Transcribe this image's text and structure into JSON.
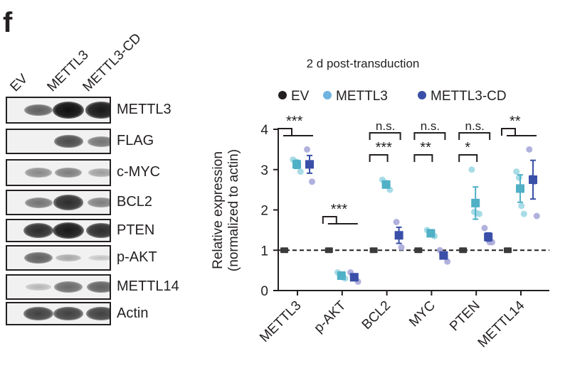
{
  "panel_letter": "f",
  "western_blot": {
    "lanes": [
      "EV",
      "METTL3",
      "METTL3-CD"
    ],
    "rows": [
      {
        "label": "METTL3",
        "intensity": [
          0.6,
          1.0,
          0.95
        ]
      },
      {
        "label": "FLAG",
        "intensity": [
          0.0,
          0.7,
          0.5
        ]
      },
      {
        "label": "c-MYC",
        "intensity": [
          0.4,
          0.45,
          0.3
        ]
      },
      {
        "label": "BCL2",
        "intensity": [
          0.5,
          0.85,
          0.45
        ]
      },
      {
        "label": "PTEN",
        "intensity": [
          0.85,
          0.95,
          0.85
        ]
      },
      {
        "label": "p-AKT",
        "intensity": [
          0.6,
          0.25,
          0.12
        ]
      },
      {
        "label": "METTL14",
        "intensity": [
          0.18,
          0.55,
          0.6
        ]
      },
      {
        "label": "Actin",
        "intensity": [
          0.75,
          0.75,
          0.75
        ]
      }
    ]
  },
  "chart_data": {
    "type": "scatter",
    "title": "2 d post-transduction",
    "xlabel": "",
    "ylabel": "Relative expression\n(normalized to actin)",
    "ylabel_line1": "Relative expression",
    "ylabel_line2": "(normalized to actin)",
    "ylim": [
      0,
      4
    ],
    "yticks": [
      0,
      1,
      2,
      3,
      4
    ],
    "categories": [
      "METTL3",
      "p-AKT",
      "BCL2",
      "MYC",
      "PTEN",
      "METTL14"
    ],
    "reference_line": 1,
    "legend": {
      "placement": "top",
      "entries": [
        {
          "name": "EV",
          "color": "#231f20"
        },
        {
          "name": "METTL3",
          "color": "#6fb3e0"
        },
        {
          "name": "METTL3-CD",
          "color": "#3a4fa8"
        }
      ]
    },
    "series": [
      {
        "name": "EV",
        "color": "#3a3a3a",
        "mean": [
          1,
          1,
          1,
          1,
          1,
          1
        ],
        "sem": [
          0,
          0,
          0,
          0,
          0,
          0
        ],
        "points": [
          [
            1,
            1,
            1
          ],
          [
            1,
            1,
            1
          ],
          [
            1,
            1,
            1
          ],
          [
            1,
            1,
            1
          ],
          [
            1,
            1,
            1
          ],
          [
            1,
            1,
            1
          ]
        ]
      },
      {
        "name": "METTL3",
        "color": "#4fb0c6",
        "point_color": "#9fd8e4",
        "mean": [
          3.13,
          0.37,
          2.63,
          1.42,
          2.17,
          2.53
        ],
        "sem": [
          0.1,
          0.04,
          0.08,
          0.06,
          0.4,
          0.34
        ],
        "points": [
          [
            3.25,
            3.2,
            3.1,
            2.95
          ],
          [
            0.45,
            0.38,
            0.33,
            0.3
          ],
          [
            2.75,
            2.68,
            2.62,
            2.5
          ],
          [
            1.5,
            1.45,
            1.4,
            1.35
          ],
          [
            3.0,
            1.95,
            1.92,
            1.9
          ],
          [
            2.95,
            2.8,
            2.1,
            1.9
          ]
        ]
      },
      {
        "name": "METTL3-CD",
        "color": "#3a4fa8",
        "point_color": "#a9a9d9",
        "mean": [
          3.13,
          0.33,
          1.37,
          0.87,
          1.33,
          2.75
        ],
        "sem": [
          0.22,
          0.06,
          0.2,
          0.06,
          0.1,
          0.48
        ],
        "points": [
          [
            3.5,
            3.1,
            2.7
          ],
          [
            0.45,
            0.35,
            0.3,
            0.22
          ],
          [
            1.7,
            1.35,
            1.07
          ],
          [
            1.0,
            0.9,
            0.85,
            0.72
          ],
          [
            1.55,
            1.35,
            1.2,
            1.2
          ],
          [
            3.5,
            2.8,
            2.7,
            1.85
          ]
        ]
      }
    ],
    "significance": [
      {
        "category": "METTL3",
        "pair": "EV-METTL3",
        "label": "***",
        "level": 1
      },
      {
        "category": "p-AKT",
        "pair": "EV-METTL3",
        "label": "***",
        "level": 1
      },
      {
        "category": "BCL2",
        "pair": "EV-METTL3",
        "label": "***",
        "level": 1
      },
      {
        "category": "BCL2",
        "pair": "EV-METTL3-CD",
        "label": "n.s.",
        "level": 2
      },
      {
        "category": "MYC",
        "pair": "EV-METTL3",
        "label": "**",
        "level": 1
      },
      {
        "category": "MYC",
        "pair": "EV-METTL3-CD",
        "label": "n.s.",
        "level": 2
      },
      {
        "category": "PTEN",
        "pair": "EV-METTL3",
        "label": "*",
        "level": 1
      },
      {
        "category": "PTEN",
        "pair": "EV-METTL3-CD",
        "label": "n.s.",
        "level": 2
      },
      {
        "category": "METTL14",
        "pair": "EV-METTL3",
        "label": "**",
        "level": 1
      }
    ]
  }
}
